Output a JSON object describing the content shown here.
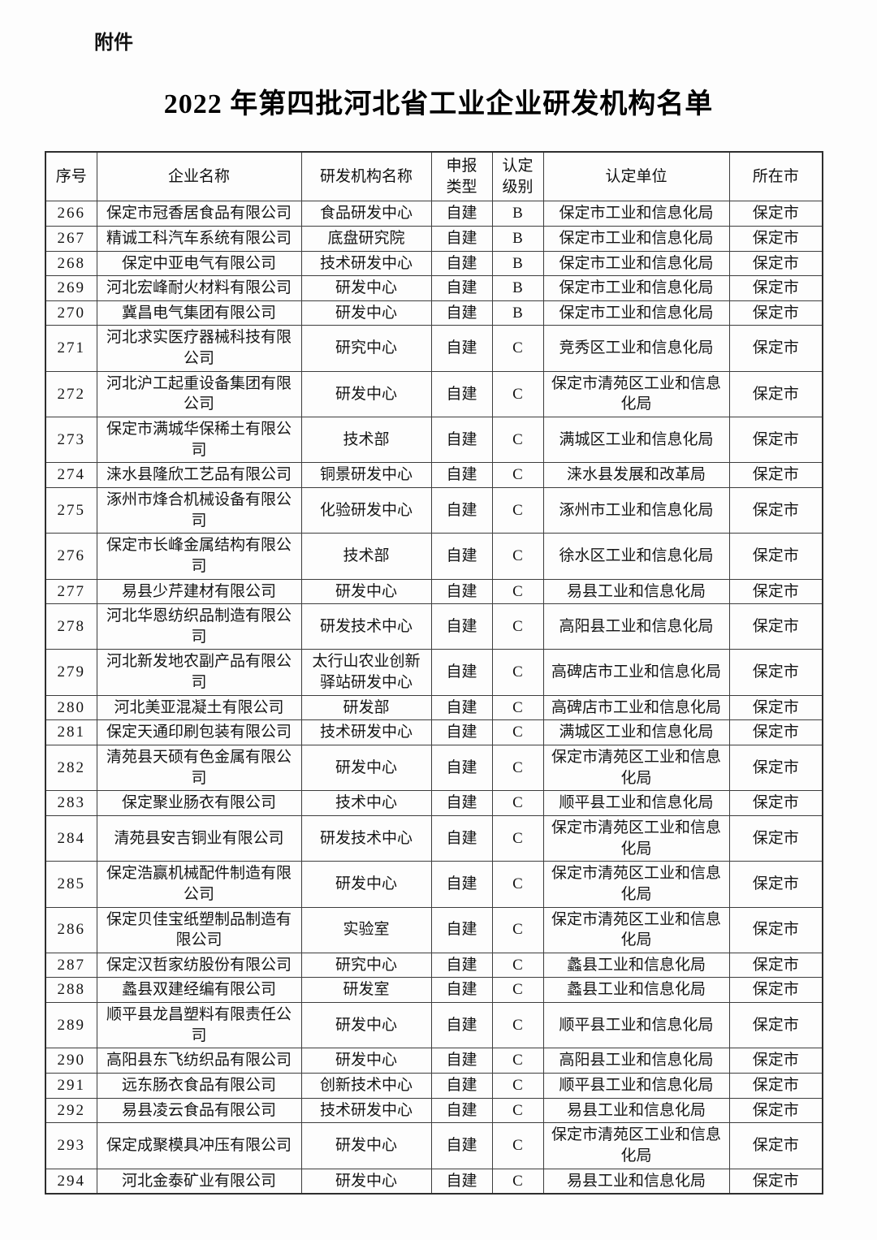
{
  "page": {
    "attachment_label": "附件",
    "title": "2022 年第四批河北省工业企业研发机构名单"
  },
  "table": {
    "headers": [
      "序号",
      "企业名称",
      "研发机构名称",
      "申报\n类型",
      "认定\n级别",
      "认定单位",
      "所在市"
    ],
    "column_keys": [
      "no",
      "company",
      "institution",
      "type",
      "level",
      "authority",
      "city"
    ],
    "highlight_color": "#e60000",
    "highlighted_row_no": "266",
    "rows": [
      [
        "266",
        "保定市冠香居食品有限公司",
        "食品研发中心",
        "自建",
        "B",
        "保定市工业和信息化局",
        "保定市"
      ],
      [
        "267",
        "精诚工科汽车系统有限公司",
        "底盘研究院",
        "自建",
        "B",
        "保定市工业和信息化局",
        "保定市"
      ],
      [
        "268",
        "保定中亚电气有限公司",
        "技术研发中心",
        "自建",
        "B",
        "保定市工业和信息化局",
        "保定市"
      ],
      [
        "269",
        "河北宏峰耐火材料有限公司",
        "研发中心",
        "自建",
        "B",
        "保定市工业和信息化局",
        "保定市"
      ],
      [
        "270",
        "冀昌电气集团有限公司",
        "研发中心",
        "自建",
        "B",
        "保定市工业和信息化局",
        "保定市"
      ],
      [
        "271",
        "河北求实医疗器械科技有限公司",
        "研究中心",
        "自建",
        "C",
        "竞秀区工业和信息化局",
        "保定市"
      ],
      [
        "272",
        "河北沪工起重设备集团有限公司",
        "研发中心",
        "自建",
        "C",
        "保定市清苑区工业和信息化局",
        "保定市"
      ],
      [
        "273",
        "保定市满城华保稀土有限公司",
        "技术部",
        "自建",
        "C",
        "满城区工业和信息化局",
        "保定市"
      ],
      [
        "274",
        "涞水县隆欣工艺品有限公司",
        "铜景研发中心",
        "自建",
        "C",
        "涞水县发展和改革局",
        "保定市"
      ],
      [
        "275",
        "涿州市烽合机械设备有限公司",
        "化验研发中心",
        "自建",
        "C",
        "涿州市工业和信息化局",
        "保定市"
      ],
      [
        "276",
        "保定市长峰金属结构有限公司",
        "技术部",
        "自建",
        "C",
        "徐水区工业和信息化局",
        "保定市"
      ],
      [
        "277",
        "易县少芹建材有限公司",
        "研发中心",
        "自建",
        "C",
        "易县工业和信息化局",
        "保定市"
      ],
      [
        "278",
        "河北华恩纺织品制造有限公司",
        "研发技术中心",
        "自建",
        "C",
        "高阳县工业和信息化局",
        "保定市"
      ],
      [
        "279",
        "河北新发地农副产品有限公司",
        "太行山农业创新驿站研发中心",
        "自建",
        "C",
        "高碑店市工业和信息化局",
        "保定市"
      ],
      [
        "280",
        "河北美亚混凝土有限公司",
        "研发部",
        "自建",
        "C",
        "高碑店市工业和信息化局",
        "保定市"
      ],
      [
        "281",
        "保定天通印刷包装有限公司",
        "技术研发中心",
        "自建",
        "C",
        "满城区工业和信息化局",
        "保定市"
      ],
      [
        "282",
        "清苑县天硕有色金属有限公司",
        "研发中心",
        "自建",
        "C",
        "保定市清苑区工业和信息化局",
        "保定市"
      ],
      [
        "283",
        "保定聚业肠衣有限公司",
        "技术中心",
        "自建",
        "C",
        "顺平县工业和信息化局",
        "保定市"
      ],
      [
        "284",
        "清苑县安吉铜业有限公司",
        "研发技术中心",
        "自建",
        "C",
        "保定市清苑区工业和信息化局",
        "保定市"
      ],
      [
        "285",
        "保定浩赢机械配件制造有限公司",
        "研发中心",
        "自建",
        "C",
        "保定市清苑区工业和信息化局",
        "保定市"
      ],
      [
        "286",
        "保定贝佳宝纸塑制品制造有限公司",
        "实验室",
        "自建",
        "C",
        "保定市清苑区工业和信息化局",
        "保定市"
      ],
      [
        "287",
        "保定汉哲家纺股份有限公司",
        "研究中心",
        "自建",
        "C",
        "蠡县工业和信息化局",
        "保定市"
      ],
      [
        "288",
        "蠡县双建经编有限公司",
        "研发室",
        "自建",
        "C",
        "蠡县工业和信息化局",
        "保定市"
      ],
      [
        "289",
        "顺平县龙昌塑料有限责任公司",
        "研发中心",
        "自建",
        "C",
        "顺平县工业和信息化局",
        "保定市"
      ],
      [
        "290",
        "高阳县东飞纺织品有限公司",
        "研发中心",
        "自建",
        "C",
        "高阳县工业和信息化局",
        "保定市"
      ],
      [
        "291",
        "远东肠衣食品有限公司",
        "创新技术中心",
        "自建",
        "C",
        "顺平县工业和信息化局",
        "保定市"
      ],
      [
        "292",
        "易县凌云食品有限公司",
        "技术研发中心",
        "自建",
        "C",
        "易县工业和信息化局",
        "保定市"
      ],
      [
        "293",
        "保定成聚模具冲压有限公司",
        "研发中心",
        "自建",
        "C",
        "保定市清苑区工业和信息化局",
        "保定市"
      ],
      [
        "294",
        "河北金泰矿业有限公司",
        "研发中心",
        "自建",
        "C",
        "易县工业和信息化局",
        "保定市"
      ]
    ]
  }
}
